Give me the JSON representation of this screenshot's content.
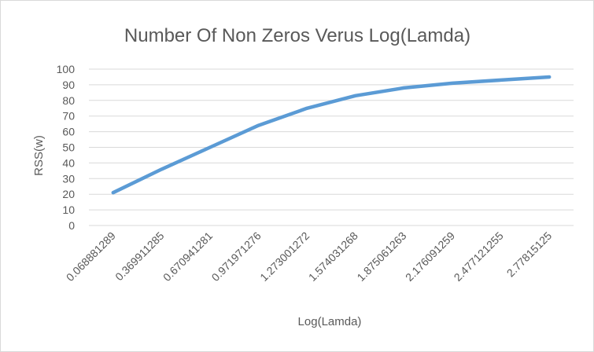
{
  "chart_data": {
    "type": "line",
    "title": "Number Of Non Zeros Verus Log(Lamda)",
    "xlabel": "Log(Lamda)",
    "ylabel": "RSS(w)",
    "categories": [
      "0.068881289",
      "0.369911285",
      "0.670941281",
      "0.971971276",
      "1.273001272",
      "1.574031268",
      "1.875061263",
      "2.176091259",
      "2.477121255",
      "2.77815125"
    ],
    "series": [
      {
        "values": [
          21,
          36,
          50,
          64,
          75,
          83,
          88,
          91,
          93,
          95
        ]
      }
    ],
    "ylim": [
      0,
      100
    ],
    "yticks": [
      0,
      10,
      20,
      30,
      40,
      50,
      60,
      70,
      80,
      90,
      100
    ],
    "grid": true,
    "legend": "none",
    "colors": {
      "series": "#5b9bd5",
      "grid": "#d9d9d9",
      "text": "#595959"
    }
  }
}
